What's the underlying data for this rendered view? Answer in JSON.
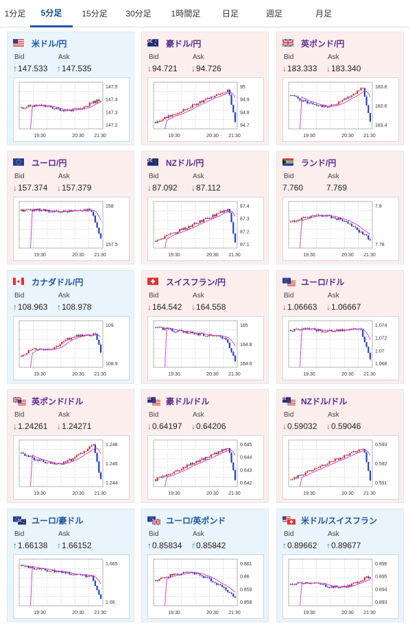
{
  "tabs": [
    {
      "label": "1分足",
      "active": false
    },
    {
      "label": "5分足",
      "active": true
    },
    {
      "label": "15分足",
      "active": false
    },
    {
      "label": "30分足",
      "active": false
    },
    {
      "label": "1時間足",
      "active": false
    },
    {
      "label": "日足",
      "active": false
    },
    {
      "label": "週足",
      "active": false
    },
    {
      "label": "月足",
      "active": false
    }
  ],
  "labels": {
    "bid": "Bid",
    "ask": "Ask"
  },
  "colors": {
    "up": "#1a73c8",
    "down": "#d33a2c",
    "candle_up": "#d32b2b",
    "candle_down": "#1e3fbf",
    "ma": "#cc33cc",
    "active_tab": "#1a56a8"
  },
  "x_ticks": [
    "19:30",
    "20:30",
    "21:30"
  ],
  "cards": [
    {
      "pair": "米ドル/円",
      "flag": "us",
      "direction": "up",
      "theme": "up",
      "bid": "147.533",
      "ask": "147.535",
      "bid_dir": "up",
      "ask_dir": "up",
      "yticks": [
        "147.5",
        "147.4",
        "147.3",
        "147.2"
      ],
      "trend": "flat_spike_up",
      "seed": 11
    },
    {
      "pair": "豪ドル/円",
      "flag": "au",
      "direction": "down",
      "theme": "down",
      "bid": "94.721",
      "ask": "94.726",
      "bid_dir": "down",
      "ask_dir": "down",
      "yticks": [
        "95",
        "94.9",
        "94.8",
        "94.7"
      ],
      "trend": "rise_drop",
      "seed": 22
    },
    {
      "pair": "英ポンド/円",
      "flag": "gb",
      "direction": "down",
      "theme": "down",
      "bid": "183.333",
      "ask": "183.340",
      "bid_dir": "down",
      "ask_dir": "down",
      "yticks": [
        "183.8",
        "183.6",
        "183.4"
      ],
      "trend": "dip_rise_drop",
      "seed": 33
    },
    {
      "pair": "ユーロ/円",
      "flag": "eu",
      "direction": "down",
      "theme": "down",
      "bid": "157.374",
      "ask": "157.379",
      "bid_dir": "down",
      "ask_dir": "down",
      "yticks": [
        "158",
        "157.5"
      ],
      "trend": "flat_drop",
      "seed": 44
    },
    {
      "pair": "NZドル/円",
      "flag": "nz",
      "direction": "down",
      "theme": "down",
      "bid": "87.092",
      "ask": "87.112",
      "bid_dir": "down",
      "ask_dir": "down",
      "yticks": [
        "87.4",
        "87.3",
        "87.2",
        "87.1"
      ],
      "trend": "rise_drop",
      "seed": 55
    },
    {
      "pair": "ランド/円",
      "flag": "za",
      "direction": "none",
      "theme": "neutral",
      "bid": "7.760",
      "ask": "7.769",
      "bid_dir": "none",
      "ask_dir": "none",
      "yticks": [
        "7.8",
        "7.78"
      ],
      "trend": "peak_decline",
      "seed": 66
    },
    {
      "pair": "カナダドル/円",
      "flag": "ca",
      "direction": "up",
      "theme": "up",
      "bid": "108.963",
      "ask": "108.978",
      "bid_dir": "up",
      "ask_dir": "up",
      "yticks": [
        "109",
        "108.9"
      ],
      "trend": "rise_drop_small",
      "seed": 77
    },
    {
      "pair": "スイスフラン/円",
      "flag": "ch",
      "direction": "down",
      "theme": "down",
      "bid": "164.542",
      "ask": "164.558",
      "bid_dir": "down",
      "ask_dir": "down",
      "yticks": [
        "165",
        "164.8",
        "164.6"
      ],
      "trend": "decline_drop",
      "seed": 88
    },
    {
      "pair": "ユーロ/ドル",
      "flag": "euus",
      "direction": "down",
      "theme": "down",
      "bid": "1.06663",
      "ask": "1.06667",
      "bid_dir": "down",
      "ask_dir": "down",
      "yticks": [
        "1.074",
        "1.072",
        "1.07",
        "1.068"
      ],
      "trend": "flat_drop",
      "seed": 99
    },
    {
      "pair": "英ポンド/ドル",
      "flag": "gbus",
      "direction": "down",
      "theme": "down",
      "bid": "1.24261",
      "ask": "1.24271",
      "bid_dir": "down",
      "ask_dir": "down",
      "yticks": [
        "1.248",
        "1.246",
        "1.244"
      ],
      "trend": "dip_rise_drop",
      "seed": 111
    },
    {
      "pair": "豪ドル/ドル",
      "flag": "auus",
      "direction": "down",
      "theme": "down",
      "bid": "0.64197",
      "ask": "0.64206",
      "bid_dir": "down",
      "ask_dir": "down",
      "yticks": [
        "0.645",
        "0.644",
        "0.643",
        "0.642"
      ],
      "trend": "rise_drop",
      "seed": 122
    },
    {
      "pair": "NZドル/ドル",
      "flag": "nzus",
      "direction": "down",
      "theme": "down",
      "bid": "0.59032",
      "ask": "0.59046",
      "bid_dir": "down",
      "ask_dir": "down",
      "yticks": [
        "0.593",
        "0.592",
        "0.591"
      ],
      "trend": "rise_drop",
      "seed": 133
    },
    {
      "pair": "ユーロ/豪ドル",
      "flag": "euau",
      "direction": "up",
      "theme": "up",
      "bid": "1.66138",
      "ask": "1.66152",
      "bid_dir": "up",
      "ask_dir": "up",
      "yticks": [
        "1.665",
        "1.66"
      ],
      "trend": "decline_drop",
      "seed": 144
    },
    {
      "pair": "ユーロ/英ポンド",
      "flag": "eugb",
      "direction": "up",
      "theme": "up",
      "bid": "0.85834",
      "ask": "0.85842",
      "bid_dir": "up",
      "ask_dir": "up",
      "yticks": [
        "0.861",
        "0.86",
        "0.859",
        "0.858"
      ],
      "trend": "peak_decline",
      "seed": 155
    },
    {
      "pair": "米ドル/スイスフラン",
      "flag": "usch",
      "direction": "up",
      "theme": "up",
      "bid": "0.89662",
      "ask": "0.89677",
      "bid_dir": "up",
      "ask_dir": "up",
      "yticks": [
        "0.896",
        "0.895",
        "0.894",
        "0.893"
      ],
      "trend": "flat_spike_up",
      "seed": 166
    }
  ]
}
